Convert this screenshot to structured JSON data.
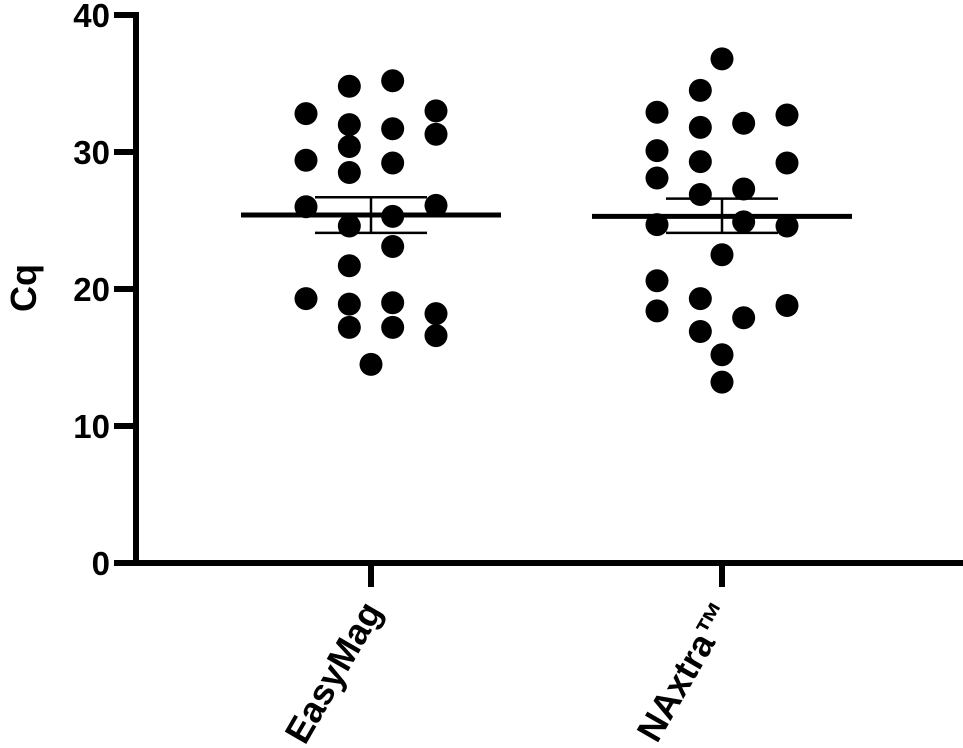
{
  "chart_data": {
    "type": "scatter",
    "plot_style": "dot plot with mean and SEM error bars",
    "title": "",
    "xlabel": "",
    "ylabel": "Cq",
    "ylim": [
      0,
      40
    ],
    "yticks": [
      0,
      10,
      20,
      30,
      40
    ],
    "yticks_text": [
      "0",
      "10",
      "20",
      "30",
      "40"
    ],
    "categories": [
      "EasyMag",
      "NAxtra™"
    ],
    "grid": false,
    "legend": "none",
    "marker_color": "#000000",
    "series": [
      {
        "points": [
          {
            "dx": -0.66,
            "y": 32.8
          },
          {
            "dx": -0.22,
            "y": 34.8
          },
          {
            "dx": 0.22,
            "y": 35.2
          },
          {
            "dx": 0.66,
            "y": 33.0
          },
          {
            "dx": -0.22,
            "y": 32.0
          },
          {
            "dx": 0.22,
            "y": 31.7
          },
          {
            "dx": 0.66,
            "y": 31.3
          },
          {
            "dx": -0.22,
            "y": 30.4
          },
          {
            "dx": -0.66,
            "y": 29.4
          },
          {
            "dx": 0.22,
            "y": 29.2
          },
          {
            "dx": -0.22,
            "y": 28.5
          },
          {
            "dx": -0.66,
            "y": 26.0
          },
          {
            "dx": 0.66,
            "y": 26.1
          },
          {
            "dx": 0.22,
            "y": 25.3
          },
          {
            "dx": -0.22,
            "y": 24.6
          },
          {
            "dx": 0.22,
            "y": 23.1
          },
          {
            "dx": -0.22,
            "y": 21.7
          },
          {
            "dx": -0.66,
            "y": 19.3
          },
          {
            "dx": -0.22,
            "y": 18.9
          },
          {
            "dx": 0.22,
            "y": 19.0
          },
          {
            "dx": 0.66,
            "y": 18.2
          },
          {
            "dx": -0.22,
            "y": 17.2
          },
          {
            "dx": 0.22,
            "y": 17.2
          },
          {
            "dx": 0.66,
            "y": 16.6
          },
          {
            "dx": 0.0,
            "y": 14.5
          }
        ],
        "mean": 25.4,
        "sem_low": 24.1,
        "sem_high": 26.7
      },
      {
        "points": [
          {
            "dx": 0.0,
            "y": 36.8
          },
          {
            "dx": -0.22,
            "y": 34.5
          },
          {
            "dx": -0.66,
            "y": 32.9
          },
          {
            "dx": 0.66,
            "y": 32.7
          },
          {
            "dx": -0.22,
            "y": 31.8
          },
          {
            "dx": 0.22,
            "y": 32.1
          },
          {
            "dx": -0.66,
            "y": 30.1
          },
          {
            "dx": -0.22,
            "y": 29.3
          },
          {
            "dx": 0.66,
            "y": 29.2
          },
          {
            "dx": -0.66,
            "y": 28.1
          },
          {
            "dx": 0.22,
            "y": 27.3
          },
          {
            "dx": -0.22,
            "y": 26.9
          },
          {
            "dx": -0.66,
            "y": 24.7
          },
          {
            "dx": 0.22,
            "y": 24.9
          },
          {
            "dx": 0.66,
            "y": 24.6
          },
          {
            "dx": 0.0,
            "y": 22.5
          },
          {
            "dx": -0.66,
            "y": 20.6
          },
          {
            "dx": -0.22,
            "y": 19.3
          },
          {
            "dx": 0.66,
            "y": 18.8
          },
          {
            "dx": -0.66,
            "y": 18.4
          },
          {
            "dx": 0.22,
            "y": 17.9
          },
          {
            "dx": -0.22,
            "y": 16.9
          },
          {
            "dx": 0.0,
            "y": 15.2
          },
          {
            "dx": 0.0,
            "y": 13.2
          }
        ],
        "mean": 25.3,
        "sem_low": 24.1,
        "sem_high": 26.6
      }
    ]
  }
}
